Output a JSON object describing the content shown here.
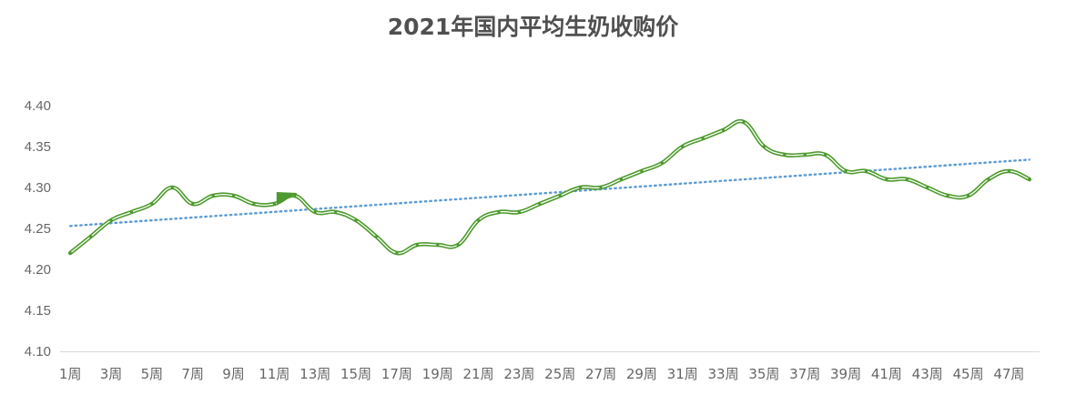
{
  "chart_data": {
    "type": "line",
    "title": "2021年国内平均生奶收购价",
    "xlabel": "",
    "ylabel": "",
    "ylim": [
      4.1,
      4.4
    ],
    "yticks": [
      "4.10",
      "4.15",
      "4.20",
      "4.25",
      "4.30",
      "4.35",
      "4.40"
    ],
    "x_tick_labels": [
      "1周",
      "3周",
      "5周",
      "7周",
      "9周",
      "11周",
      "13周",
      "15周",
      "17周",
      "19周",
      "21周",
      "23周",
      "25周",
      "27周",
      "29周",
      "31周",
      "33周",
      "35周",
      "37周",
      "39周",
      "41周",
      "43周",
      "45周",
      "47周"
    ],
    "x": [
      "1周",
      "2周",
      "3周",
      "4周",
      "5周",
      "6周",
      "7周",
      "8周",
      "9周",
      "10周",
      "11周",
      "12周",
      "13周",
      "14周",
      "15周",
      "16周",
      "17周",
      "18周",
      "19周",
      "20周",
      "21周",
      "22周",
      "23周",
      "24周",
      "25周",
      "26周",
      "27周",
      "28周",
      "29周",
      "30周",
      "31周",
      "32周",
      "33周",
      "34周",
      "35周",
      "36周",
      "37周",
      "38周",
      "39周",
      "40周",
      "41周",
      "42周",
      "43周",
      "44周",
      "45周",
      "46周",
      "47周",
      "48周"
    ],
    "series": [
      {
        "values": [
          4.22,
          4.24,
          4.26,
          4.27,
          4.28,
          4.3,
          4.28,
          4.29,
          4.29,
          4.28,
          4.28,
          4.29,
          4.27,
          4.27,
          4.26,
          4.24,
          4.22,
          4.23,
          4.23,
          4.23,
          4.26,
          4.27,
          4.27,
          4.28,
          4.29,
          4.3,
          4.3,
          4.31,
          4.32,
          4.33,
          4.35,
          4.36,
          4.37,
          4.38,
          4.35,
          4.34,
          4.34,
          4.34,
          4.32,
          4.32,
          4.31,
          4.31,
          4.3,
          4.29,
          4.29,
          4.31,
          4.32,
          4.31
        ],
        "color": "#4e9a2e"
      }
    ],
    "trendline": {
      "start": 4.253,
      "end": 4.334,
      "color": "#5b9bd5",
      "style": "dotted"
    },
    "grid": false
  }
}
